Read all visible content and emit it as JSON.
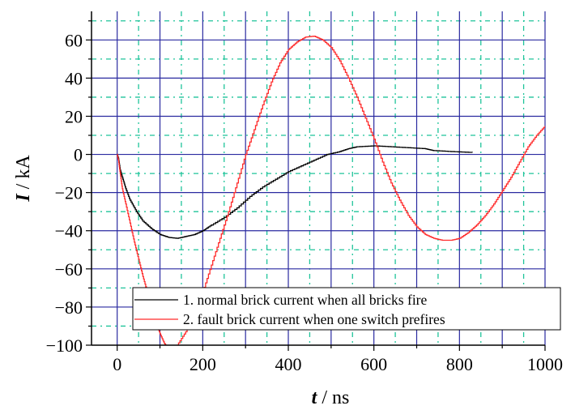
{
  "chart_data": {
    "type": "line",
    "xlabel": {
      "var": "t",
      "unit": " / ns"
    },
    "ylabel": {
      "var": "I",
      "unit": " / kA"
    },
    "xlim": [
      -60,
      1000
    ],
    "ylim": [
      -100,
      75
    ],
    "xticks": [
      0,
      200,
      400,
      600,
      800,
      1000
    ],
    "yticks": [
      -100,
      -80,
      -60,
      -40,
      -20,
      0,
      20,
      40,
      60
    ],
    "x_major_grid": [
      0,
      100,
      200,
      300,
      400,
      500,
      600,
      700,
      800,
      900,
      1000
    ],
    "y_major_grid": [
      -80,
      -60,
      -40,
      -20,
      0,
      20,
      40,
      60
    ],
    "grid": true,
    "step_plot": true,
    "legend_position": "bottom-right",
    "colors": {
      "major_grid": "#2a2aa0",
      "minor_grid": "#1fc49a",
      "axis": "#000000"
    },
    "series": [
      {
        "name": "1. normal brick current when all bricks fire",
        "color": "#000000",
        "x": [
          0,
          3,
          7,
          12,
          20,
          30,
          45,
          60,
          80,
          100,
          120,
          140,
          160,
          180,
          200,
          220,
          250,
          280,
          310,
          340,
          370,
          400,
          430,
          460,
          490,
          520,
          540,
          560,
          600,
          640,
          680,
          720,
          730,
          740,
          780,
          830
        ],
        "y": [
          0,
          -2,
          -8,
          -12,
          -18,
          -24,
          -30,
          -35,
          -39,
          -42,
          -43.5,
          -44,
          -43,
          -42,
          -40,
          -37,
          -33,
          -28,
          -22,
          -17,
          -13,
          -9,
          -6,
          -3,
          0,
          1.5,
          3,
          4,
          4.5,
          4,
          3.5,
          3,
          2.5,
          2,
          1.5,
          1
        ]
      },
      {
        "name": "2. fault brick current when one switch prefires",
        "color": "#ff2a2a",
        "x": [
          0,
          3,
          7,
          12,
          20,
          30,
          40,
          50,
          60,
          70,
          80,
          90,
          100,
          110,
          120,
          140,
          160,
          180,
          200,
          220,
          240,
          260,
          280,
          300,
          320,
          340,
          360,
          380,
          400,
          420,
          440,
          460,
          480,
          500,
          520,
          540,
          560,
          580,
          600,
          620,
          640,
          660,
          680,
          700,
          720,
          740,
          760,
          780,
          800,
          820,
          840,
          860,
          880,
          900,
          920,
          940,
          960,
          980,
          1000
        ],
        "y": [
          0,
          -3,
          -10,
          -18,
          -26,
          -36,
          -46,
          -55,
          -64,
          -72,
          -80,
          -88,
          -94,
          -99,
          -102,
          -100,
          -93,
          -84,
          -72,
          -58,
          -44,
          -30,
          -15,
          0,
          13,
          26,
          38,
          48,
          55,
          59,
          61.5,
          62,
          60,
          56,
          49,
          40,
          30,
          19,
          8,
          -4,
          -15,
          -24,
          -32,
          -38,
          -42,
          -44,
          -45,
          -45,
          -44,
          -41,
          -37,
          -32,
          -26,
          -19,
          -12,
          -4,
          4,
          10,
          15
        ]
      }
    ]
  }
}
